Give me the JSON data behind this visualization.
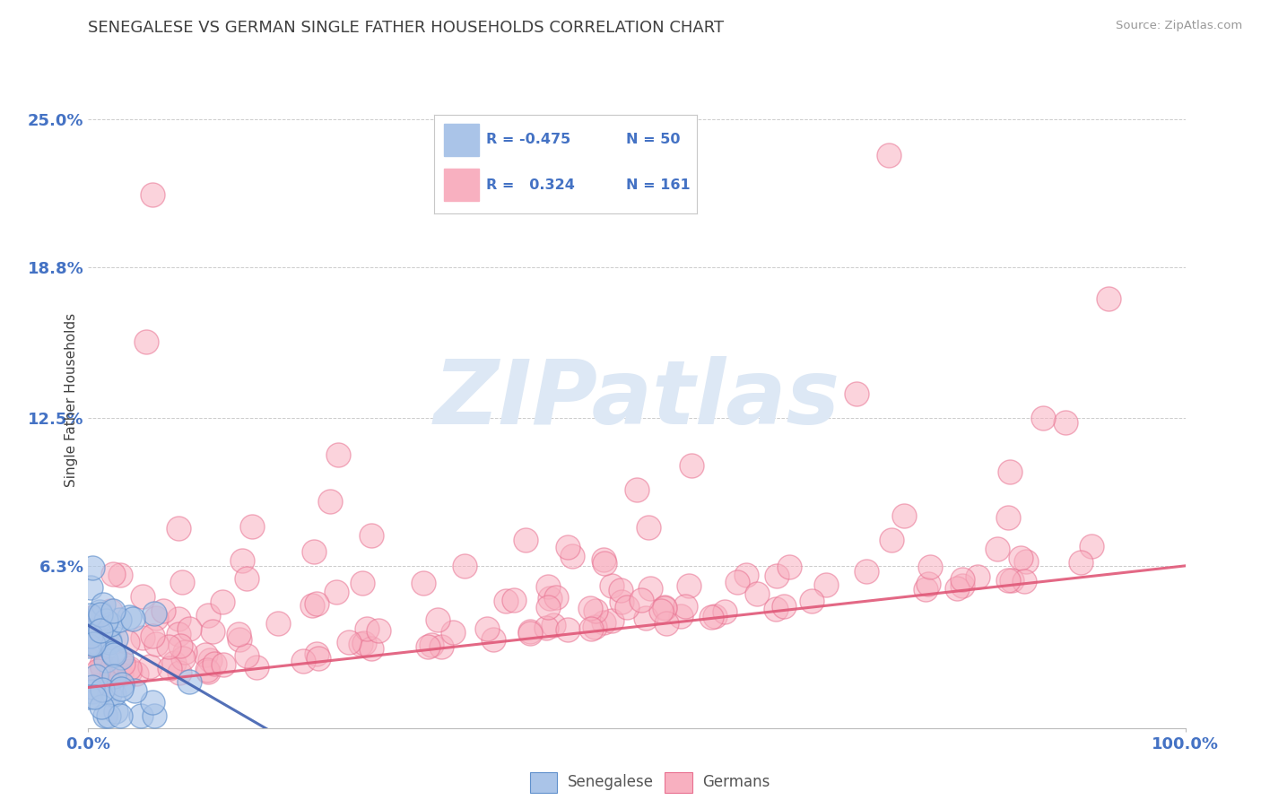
{
  "title": "SENEGALESE VS GERMAN SINGLE FATHER HOUSEHOLDS CORRELATION CHART",
  "source": "Source: ZipAtlas.com",
  "ylabel_label": "Single Father Households",
  "ylabel_ticks": [
    0.0,
    0.063,
    0.125,
    0.188,
    0.25
  ],
  "ylabel_tick_labels": [
    "",
    "6.3%",
    "12.5%",
    "18.8%",
    "25.0%"
  ],
  "senegalese_fill": "#aac4e8",
  "senegalese_edge": "#6090cc",
  "german_fill": "#f8b0c0",
  "german_edge": "#e87090",
  "trend_sen_color": "#4060b0",
  "trend_ger_color": "#e05878",
  "watermark": "ZIPatlas",
  "watermark_color": "#dde8f5",
  "background_color": "#ffffff",
  "grid_color": "#cccccc",
  "title_color": "#404040",
  "axis_tick_color": "#4472c4",
  "R_senegalese": -0.475,
  "N_senegalese": 50,
  "R_german": 0.324,
  "N_german": 161,
  "xmin": 0.0,
  "xmax": 1.0,
  "ymin": -0.005,
  "ymax": 0.27,
  "trend_ger_y0": 0.012,
  "trend_ger_y1": 0.063,
  "trend_sen_y0": 0.038,
  "trend_sen_y1": -0.01,
  "trend_sen_x1": 0.18
}
